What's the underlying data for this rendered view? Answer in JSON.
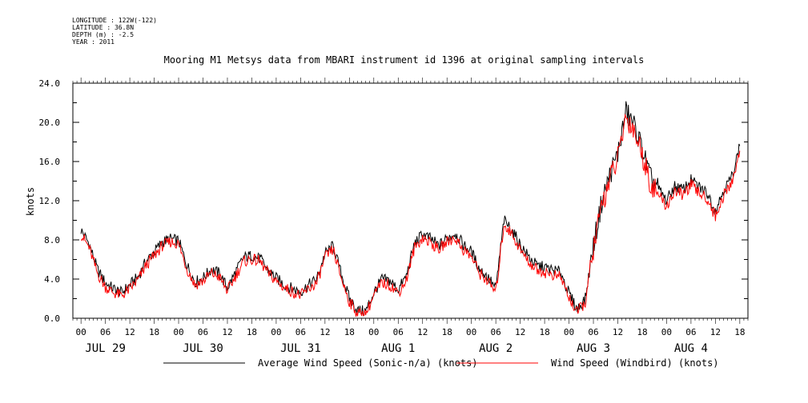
{
  "meta": {
    "longitude": "LONGITUDE : 122W(-122)",
    "latitude": "LATITUDE : 36.8N",
    "depth": "DEPTH (m) : -2.5",
    "year": "YEAR : 2011"
  },
  "chart_data": {
    "type": "line",
    "title": "Mooring M1 Metsys data from MBARI instrument id 1396 at original sampling intervals",
    "ylabel": "knots",
    "xlabel": "",
    "ylim": [
      0,
      24
    ],
    "y_ticks": [
      "0.0",
      "4.0",
      "8.0",
      "12.0",
      "16.0",
      "20.0",
      "24.0"
    ],
    "x_hour_labels": [
      "00",
      "06",
      "12",
      "18",
      "00",
      "06",
      "12",
      "18",
      "00",
      "06",
      "12",
      "18",
      "00",
      "06",
      "12",
      "18",
      "00",
      "06",
      "12",
      "18",
      "00",
      "06",
      "12",
      "18",
      "00",
      "06",
      "12",
      "18"
    ],
    "x_day_labels": [
      "JUL 29",
      "JUL 30",
      "JUL 31",
      "AUG  1",
      "AUG  2",
      "AUG  3",
      "AUG  4"
    ],
    "x_unit": "hours since 2011-07-29 00:00",
    "xlim": [
      -2,
      164
    ],
    "grid": false,
    "legend_position": "bottom",
    "series": [
      {
        "name": "Average Wind Speed (Sonic-n/a) (knots)",
        "color": "#000000",
        "x": [
          0,
          2,
          4,
          6,
          8,
          10,
          12,
          14,
          16,
          18,
          20,
          22,
          24,
          26,
          28,
          30,
          32,
          34,
          36,
          38,
          40,
          42,
          44,
          46,
          48,
          50,
          52,
          54,
          56,
          58,
          60,
          62,
          64,
          66,
          68,
          70,
          72,
          74,
          76,
          78,
          80,
          82,
          84,
          86,
          88,
          90,
          92,
          94,
          96,
          98,
          100,
          102,
          104,
          106,
          108,
          110,
          112,
          114,
          116,
          118,
          120,
          122,
          124,
          126,
          128,
          130,
          132,
          134,
          136,
          138,
          140,
          142,
          144,
          146,
          148,
          150,
          152,
          154,
          156,
          158,
          160,
          162
        ],
        "y": [
          9.0,
          7.6,
          5.0,
          3.6,
          3.0,
          2.6,
          3.4,
          4.2,
          5.8,
          6.8,
          7.8,
          8.1,
          7.9,
          5.5,
          3.7,
          4.1,
          5.0,
          4.6,
          3.1,
          4.7,
          6.2,
          6.4,
          6.1,
          4.9,
          4.1,
          3.4,
          3.0,
          2.7,
          3.4,
          4.0,
          6.6,
          7.4,
          4.5,
          2.0,
          0.8,
          0.7,
          2.6,
          4.0,
          3.8,
          2.9,
          4.3,
          7.6,
          8.6,
          8.1,
          7.4,
          8.2,
          8.7,
          7.5,
          6.8,
          5.0,
          4.2,
          3.0,
          10.0,
          9.0,
          7.5,
          6.3,
          5.4,
          5.2,
          4.9,
          4.7,
          2.5,
          0.9,
          2.0,
          7.4,
          11.8,
          14.6,
          16.8,
          21.1,
          19.7,
          17.3,
          14.3,
          13.2,
          12.0,
          13.5,
          13.1,
          14.1,
          13.4,
          12.8,
          11.0,
          13.1,
          14.4,
          17.6
        ]
      },
      {
        "name": "Wind Speed (Windbird) (knots)",
        "color": "#ff0000",
        "x": [
          0,
          2,
          4,
          6,
          8,
          10,
          12,
          14,
          16,
          18,
          20,
          22,
          24,
          26,
          28,
          30,
          32,
          34,
          36,
          38,
          40,
          42,
          44,
          46,
          48,
          50,
          52,
          54,
          56,
          58,
          60,
          62,
          64,
          66,
          68,
          70,
          72,
          74,
          76,
          78,
          80,
          82,
          84,
          86,
          88,
          90,
          92,
          94,
          96,
          98,
          100,
          102,
          104,
          106,
          108,
          110,
          112,
          114,
          116,
          118,
          120,
          122,
          124,
          126,
          128,
          130,
          132,
          134,
          136,
          138,
          140,
          142,
          144,
          146,
          148,
          150,
          152,
          154,
          156,
          158,
          160,
          162
        ],
        "y": [
          8.6,
          7.2,
          4.6,
          3.2,
          2.6,
          2.3,
          3.0,
          3.9,
          5.4,
          6.4,
          7.4,
          7.8,
          7.6,
          5.1,
          3.4,
          3.8,
          4.6,
          4.2,
          2.8,
          4.3,
          5.8,
          6.0,
          5.8,
          4.6,
          3.8,
          3.1,
          2.7,
          2.3,
          3.0,
          3.6,
          6.2,
          7.0,
          4.1,
          1.7,
          0.5,
          0.4,
          2.3,
          3.6,
          3.4,
          2.6,
          3.9,
          7.2,
          8.2,
          7.7,
          7.0,
          7.8,
          8.2,
          7.0,
          6.3,
          4.6,
          3.8,
          2.6,
          9.6,
          8.6,
          7.0,
          5.8,
          5.0,
          4.7,
          4.4,
          4.2,
          2.1,
          0.6,
          1.6,
          7.0,
          11.4,
          14.2,
          16.3,
          20.6,
          19.2,
          16.8,
          13.8,
          12.6,
          11.4,
          13.0,
          12.6,
          13.6,
          12.8,
          12.2,
          10.4,
          12.5,
          13.8,
          17.1
        ]
      }
    ]
  }
}
